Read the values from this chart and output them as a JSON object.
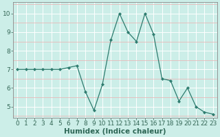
{
  "x": [
    0,
    1,
    2,
    3,
    4,
    5,
    6,
    7,
    8,
    9,
    10,
    11,
    12,
    13,
    14,
    15,
    16,
    17,
    18,
    19,
    20,
    21,
    22,
    23
  ],
  "y": [
    7.0,
    7.0,
    7.0,
    7.0,
    7.0,
    7.0,
    7.1,
    7.2,
    5.8,
    4.8,
    6.2,
    8.6,
    10.0,
    9.0,
    8.5,
    10.0,
    8.9,
    6.5,
    6.4,
    5.3,
    6.0,
    5.0,
    4.7,
    4.6
  ],
  "xlabel": "Humidex (Indice chaleur)",
  "line_color": "#2d7b6e",
  "marker_color": "#2d7b6e",
  "bg_color": "#cceee8",
  "major_grid_color": "#ffffff",
  "minor_grid_color": "#e8b8b8",
  "axis_color": "#888888",
  "tick_color": "#336655",
  "xlabel_color": "#2d6655",
  "ylim": [
    4.4,
    10.6
  ],
  "xlim": [
    -0.5,
    23.5
  ],
  "yticks": [
    5,
    6,
    7,
    8,
    9,
    10
  ],
  "xticks": [
    0,
    1,
    2,
    3,
    4,
    5,
    6,
    7,
    8,
    9,
    10,
    11,
    12,
    13,
    14,
    15,
    16,
    17,
    18,
    19,
    20,
    21,
    22,
    23
  ],
  "xlabel_fontsize": 7.5,
  "tick_fontsize": 6.5
}
